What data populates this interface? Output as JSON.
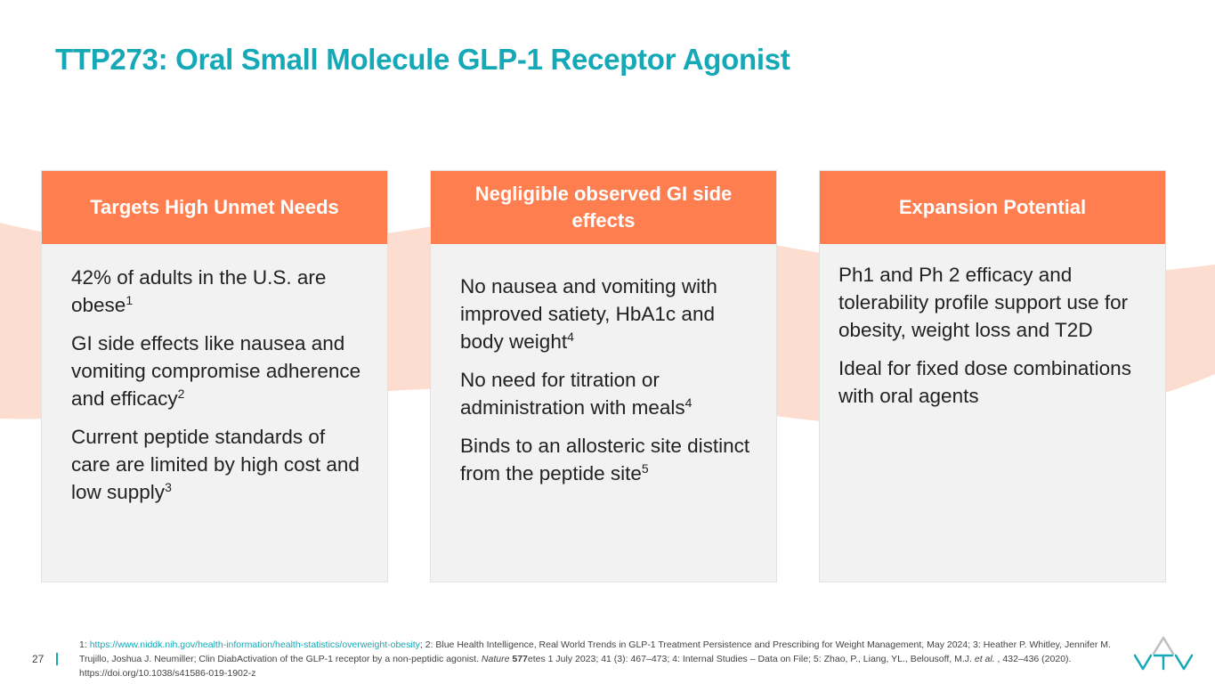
{
  "slide": {
    "title": "TTP273: Oral Small Molecule GLP-1 Receptor Agonist",
    "page_number": "27",
    "colors": {
      "accent": "#15A9B7",
      "header": "#FF7E4F",
      "wave": "#FCDDD0",
      "card_bg": "#F2F2F2"
    }
  },
  "cards": [
    {
      "header": "Targets High Unmet Needs",
      "items": [
        {
          "text": "42% of adults in the U.S. are obese",
          "sup": "1"
        },
        {
          "text": "GI side effects like nausea and vomiting compromise adherence and efficacy",
          "sup": "2"
        },
        {
          "text": "Current peptide standards of care are limited by high cost and low supply",
          "sup": "3"
        }
      ]
    },
    {
      "header": "Negligible observed GI side effects",
      "items": [
        {
          "text": "No nausea and vomiting with improved satiety, HbA1c and body weight",
          "sup": "4"
        },
        {
          "text": "No need for titration or administration with meals",
          "sup": "4"
        },
        {
          "text": "Binds to an allosteric site distinct from the peptide site",
          "sup": "5"
        }
      ]
    },
    {
      "header": "Expansion Potential",
      "items": [
        {
          "text": "Ph1 and Ph 2 efficacy and tolerability profile support use for obesity, weight loss and T2D"
        },
        {
          "text": "Ideal for fixed dose combinations with oral agents"
        }
      ]
    }
  ],
  "footnote": {
    "prefix": "1: ",
    "link": "https://www.niddk.nih.gov/health-information/health-statistics/overweight-obesity",
    "part1": "; 2: Blue Health Intelligence, Real World Trends in GLP-1 Treatment Persistence and Prescribing for Weight Management, May 2024; 3: Heather P. Whitley, Jennifer M. Trujillo, Joshua J. Neumiller; Clin DiabActivation of the GLP-1 receptor by a non-peptidic agonist. ",
    "journal": "Nature",
    "volume": "577",
    "part2": "etes 1 July 2023; 41 (3): 467–473; 4: Internal Studies – Data on File; 5: Zhao, P., Liang, YL., Belousoff, M.J. ",
    "etal": "et al.",
    "part3": " , 432–436 (2020). https://doi.org/10.1038/s41586-019-1902-z"
  },
  "logo": {
    "icon": "vtv-logo-icon"
  }
}
